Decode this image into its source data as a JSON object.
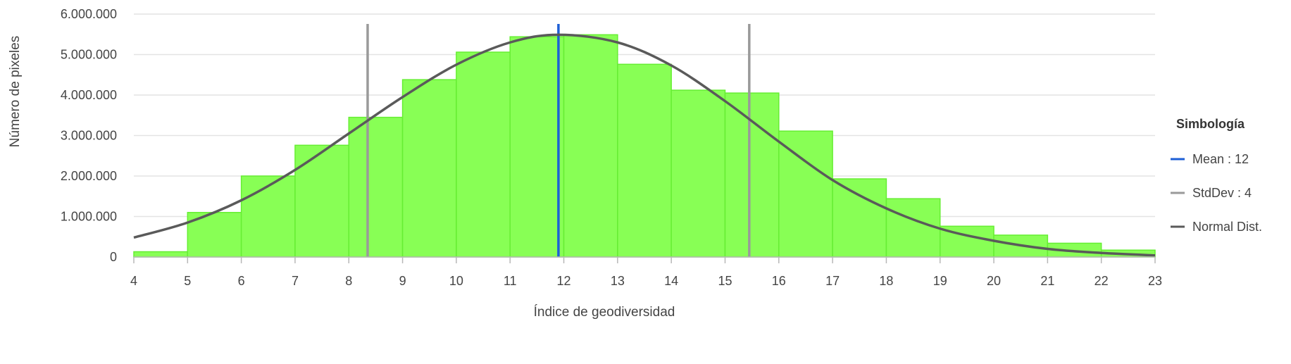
{
  "chart_data": {
    "type": "bar",
    "title": "",
    "xlabel": "Índice de geodiversidad",
    "ylabel": "Número de pixeles",
    "xlim": [
      4,
      23
    ],
    "ylim": [
      0,
      6000000
    ],
    "x_ticks": [
      "4",
      "5",
      "6",
      "7",
      "8",
      "9",
      "10",
      "11",
      "12",
      "13",
      "14",
      "15",
      "16",
      "17",
      "18",
      "19",
      "20",
      "21",
      "22",
      "23"
    ],
    "y_ticks": [
      {
        "value": 0,
        "label": "0"
      },
      {
        "value": 1000000,
        "label": "1.000.000"
      },
      {
        "value": 2000000,
        "label": "2.000.000"
      },
      {
        "value": 3000000,
        "label": "3.000.000"
      },
      {
        "value": 4000000,
        "label": "4.000.000"
      },
      {
        "value": 5000000,
        "label": "5.000.000"
      },
      {
        "value": 6000000,
        "label": "6.000.000"
      }
    ],
    "grid": true,
    "histogram": {
      "bins": [
        {
          "x0": 4,
          "x1": 5,
          "value": 130000
        },
        {
          "x0": 5,
          "x1": 6,
          "value": 1100000
        },
        {
          "x0": 6,
          "x1": 7,
          "value": 2000000
        },
        {
          "x0": 7,
          "x1": 8,
          "value": 2760000
        },
        {
          "x0": 8,
          "x1": 9,
          "value": 3450000
        },
        {
          "x0": 9,
          "x1": 10,
          "value": 4380000
        },
        {
          "x0": 10,
          "x1": 11,
          "value": 5060000
        },
        {
          "x0": 11,
          "x1": 12,
          "value": 5440000
        },
        {
          "x0": 12,
          "x1": 13,
          "value": 5490000
        },
        {
          "x0": 13,
          "x1": 14,
          "value": 4760000
        },
        {
          "x0": 14,
          "x1": 15,
          "value": 4120000
        },
        {
          "x0": 15,
          "x1": 16,
          "value": 4050000
        },
        {
          "x0": 16,
          "x1": 17,
          "value": 3110000
        },
        {
          "x0": 17,
          "x1": 18,
          "value": 1930000
        },
        {
          "x0": 18,
          "x1": 19,
          "value": 1440000
        },
        {
          "x0": 19,
          "x1": 20,
          "value": 760000
        },
        {
          "x0": 20,
          "x1": 21,
          "value": 540000
        },
        {
          "x0": 21,
          "x1": 22,
          "value": 340000
        },
        {
          "x0": 22,
          "x1": 23,
          "value": 170000
        }
      ],
      "fill_color": "#88ff55",
      "edge_color": "#66ee33"
    },
    "mean": {
      "x": 11.9,
      "color": "#1e5fd6"
    },
    "stddev_lines": {
      "x": [
        8.35,
        15.45
      ],
      "color": "#9a9a9a"
    },
    "normal_curve": {
      "color": "#5a5a5a",
      "points": [
        {
          "x": 4,
          "y": 480000
        },
        {
          "x": 5,
          "y": 850000
        },
        {
          "x": 6,
          "y": 1400000
        },
        {
          "x": 7,
          "y": 2150000
        },
        {
          "x": 8,
          "y": 3050000
        },
        {
          "x": 9,
          "y": 3950000
        },
        {
          "x": 10,
          "y": 4750000
        },
        {
          "x": 11,
          "y": 5300000
        },
        {
          "x": 11.9,
          "y": 5490000
        },
        {
          "x": 13,
          "y": 5300000
        },
        {
          "x": 14,
          "y": 4730000
        },
        {
          "x": 15,
          "y": 3850000
        },
        {
          "x": 16,
          "y": 2850000
        },
        {
          "x": 17,
          "y": 1900000
        },
        {
          "x": 18,
          "y": 1200000
        },
        {
          "x": 19,
          "y": 700000
        },
        {
          "x": 20,
          "y": 400000
        },
        {
          "x": 21,
          "y": 200000
        },
        {
          "x": 22,
          "y": 100000
        },
        {
          "x": 23,
          "y": 40000
        }
      ]
    },
    "legend": {
      "title": "Simbología",
      "placement": "right",
      "items": [
        {
          "label": "Mean : 12",
          "color": "#1e5fd6"
        },
        {
          "label": "StdDev : 4",
          "color": "#9a9a9a"
        },
        {
          "label": "Normal Dist.",
          "color": "#5a5a5a"
        }
      ]
    }
  }
}
